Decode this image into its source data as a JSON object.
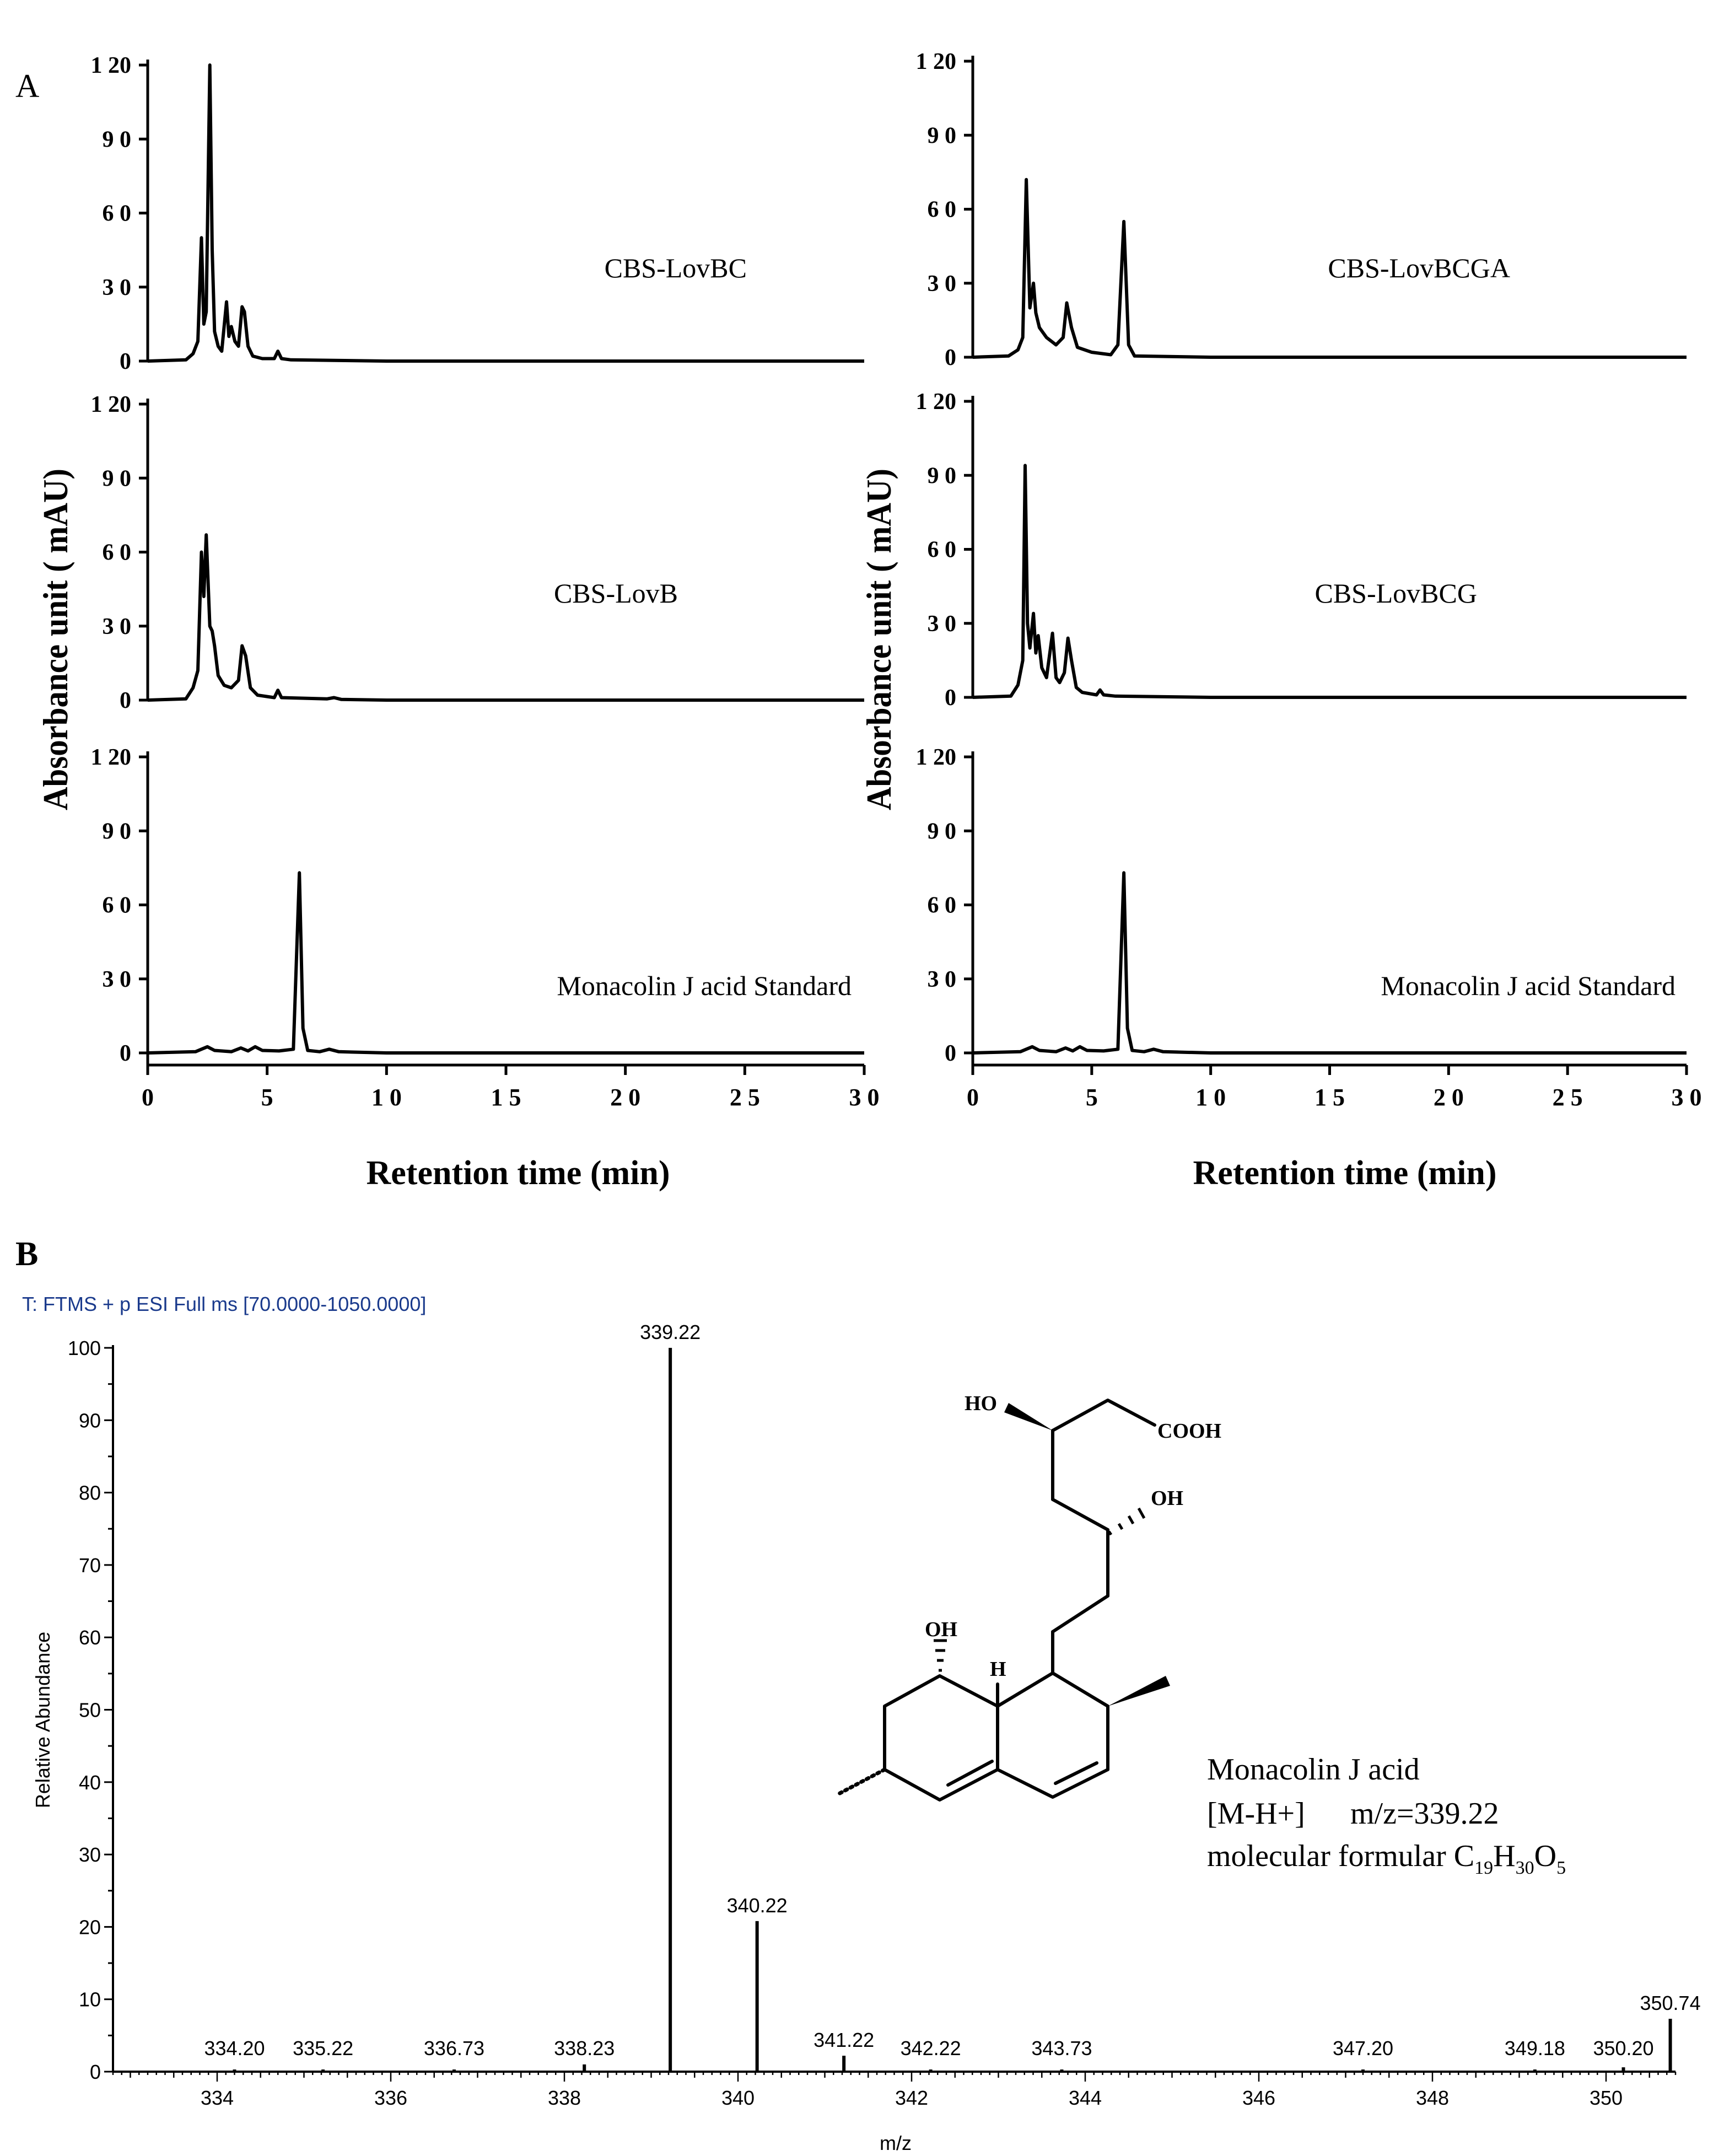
{
  "panel_labels": {
    "a": "A",
    "b": "B"
  },
  "panel_a": {
    "ylabel": "Absorbance unit ( mAU)",
    "xlabel": "Retention time (min)",
    "x_ticks": [
      "0",
      "5",
      "1 0",
      "1 5",
      "2 0",
      "2 5",
      "3 0"
    ],
    "y_ticks": [
      "0",
      "3 0",
      "6 0",
      "9 0",
      "1 20"
    ]
  },
  "panel_b": {
    "header": "T: FTMS + p ESI Full ms [70.0000-1050.0000]",
    "xlabel": "m/z",
    "ylabel": "Relative Abundance",
    "structure_labels": {
      "ho_top": "HO",
      "cooh": "COOH",
      "oh_mid": "OH",
      "oh_ring": "OH",
      "h_ring": "H"
    },
    "compound": {
      "name": "Monacolin J acid",
      "ion": "[M-H+]",
      "mz": "m/z=339.22",
      "formula_prefix": "molecular formular C",
      "sub1": "19",
      "h": "H",
      "sub2": "30",
      "o": "O",
      "sub3": "5"
    }
  },
  "chart_data": [
    {
      "type": "line",
      "panel": "A",
      "position": "left-top",
      "label": "CBS-LovBC",
      "xlabel": "Retention time (min)",
      "ylabel": "Absorbance unit ( mAU)",
      "xlim": [
        0,
        30
      ],
      "ylim": [
        0,
        120
      ],
      "x": [
        0,
        1.6,
        1.9,
        2.1,
        2.25,
        2.35,
        2.45,
        2.6,
        2.7,
        2.8,
        2.95,
        3.1,
        3.3,
        3.4,
        3.5,
        3.65,
        3.8,
        3.95,
        4.05,
        4.2,
        4.4,
        4.8,
        5.3,
        5.45,
        5.6,
        6,
        10,
        30
      ],
      "y": [
        0,
        0.5,
        3,
        8,
        50,
        15,
        20,
        120,
        45,
        12,
        6,
        4,
        24,
        10,
        14,
        8,
        6,
        22,
        20,
        6,
        2,
        1,
        1,
        4,
        1,
        0.5,
        0,
        0
      ]
    },
    {
      "type": "line",
      "panel": "A",
      "position": "left-middle",
      "label": "CBS-LovB",
      "xlabel": "Retention time (min)",
      "ylabel": "Absorbance unit ( mAU)",
      "xlim": [
        0,
        30
      ],
      "ylim": [
        0,
        120
      ],
      "x": [
        0,
        1.6,
        1.9,
        2.1,
        2.25,
        2.35,
        2.45,
        2.6,
        2.7,
        2.8,
        2.95,
        3.2,
        3.5,
        3.8,
        3.95,
        4.1,
        4.3,
        4.6,
        5.3,
        5.45,
        5.6,
        7.5,
        7.8,
        8.1,
        10,
        30
      ],
      "y": [
        0,
        0.5,
        5,
        12,
        60,
        42,
        67,
        30,
        28,
        22,
        10,
        6,
        5,
        8,
        22,
        18,
        5,
        2,
        1,
        4,
        1,
        0.5,
        1,
        0.3,
        0,
        0
      ]
    },
    {
      "type": "line",
      "panel": "A",
      "position": "left-bottom",
      "label": "Monacolin J  acid Standard",
      "xlabel": "Retention time (min)",
      "ylabel": "Absorbance unit ( mAU)",
      "xlim": [
        0,
        30
      ],
      "ylim": [
        0,
        120
      ],
      "x": [
        0,
        2,
        2.5,
        2.8,
        3.5,
        3.9,
        4.2,
        4.5,
        4.8,
        5.5,
        6.1,
        6.35,
        6.5,
        6.7,
        7.2,
        7.6,
        8,
        10,
        30
      ],
      "y": [
        0,
        0.5,
        2.5,
        1,
        0.5,
        2,
        0.8,
        2.5,
        1,
        0.8,
        1.5,
        73,
        10,
        1,
        0.5,
        1.5,
        0.5,
        0,
        0
      ]
    },
    {
      "type": "line",
      "panel": "A",
      "position": "right-top",
      "label": "CBS-LovBCGA",
      "xlabel": "Retention time (min)",
      "ylabel": "Absorbance unit ( mAU)",
      "xlim": [
        0,
        30
      ],
      "ylim": [
        0,
        120
      ],
      "x": [
        0,
        1.5,
        1.9,
        2.1,
        2.25,
        2.4,
        2.55,
        2.65,
        2.8,
        3.1,
        3.5,
        3.8,
        3.95,
        4.15,
        4.4,
        5,
        5.8,
        6.1,
        6.35,
        6.55,
        6.8,
        10,
        30
      ],
      "y": [
        0,
        0.5,
        3,
        8,
        72,
        20,
        30,
        18,
        12,
        8,
        5,
        8,
        22,
        12,
        4,
        2,
        1,
        5,
        55,
        5,
        0.5,
        0,
        0
      ]
    },
    {
      "type": "line",
      "panel": "A",
      "position": "right-middle",
      "label": "CBS-LovBCG",
      "xlabel": "Retention time (min)",
      "ylabel": "Absorbance unit ( mAU)",
      "xlim": [
        0,
        30
      ],
      "ylim": [
        0,
        120
      ],
      "x": [
        0,
        1.6,
        1.9,
        2.1,
        2.2,
        2.3,
        2.4,
        2.55,
        2.65,
        2.75,
        2.9,
        3.1,
        3.35,
        3.5,
        3.65,
        3.85,
        4,
        4.15,
        4.35,
        4.6,
        5.2,
        5.35,
        5.5,
        6,
        10,
        30
      ],
      "y": [
        0,
        0.5,
        5,
        15,
        94,
        30,
        20,
        34,
        18,
        25,
        12,
        8,
        26,
        8,
        6,
        10,
        24,
        15,
        4,
        2,
        1,
        3,
        1,
        0.5,
        0,
        0
      ]
    },
    {
      "type": "line",
      "panel": "A",
      "position": "right-bottom",
      "label": "Monacolin J  acid Standard",
      "xlabel": "Retention time (min)",
      "ylabel": "Absorbance unit ( mAU)",
      "xlim": [
        0,
        30
      ],
      "ylim": [
        0,
        120
      ],
      "x": [
        0,
        2,
        2.5,
        2.8,
        3.5,
        3.9,
        4.2,
        4.5,
        4.8,
        5.5,
        6.1,
        6.35,
        6.5,
        6.7,
        7.2,
        7.6,
        8,
        10,
        30
      ],
      "y": [
        0,
        0.5,
        2.5,
        1,
        0.5,
        2,
        0.8,
        2.5,
        1,
        0.8,
        1.5,
        73,
        10,
        1,
        0.5,
        1.5,
        0.5,
        0,
        0
      ]
    },
    {
      "type": "bar",
      "panel": "B",
      "title": "T: FTMS + p ESI Full ms [70.0000-1050.0000]",
      "xlabel": "m/z",
      "ylabel": "Relative Abundance",
      "xlim": [
        332.8,
        350.8
      ],
      "ylim": [
        0,
        100
      ],
      "x_ticks": [
        334,
        336,
        338,
        340,
        342,
        344,
        346,
        348,
        350
      ],
      "y_ticks": [
        0,
        10,
        20,
        30,
        40,
        50,
        60,
        70,
        80,
        90,
        100
      ],
      "peaks": [
        {
          "mz": 334.2,
          "label": "334.20",
          "intensity": 0.3
        },
        {
          "mz": 335.22,
          "label": "335.22",
          "intensity": 0.3
        },
        {
          "mz": 336.73,
          "label": "336.73",
          "intensity": 0.3
        },
        {
          "mz": 338.23,
          "label": "338.23",
          "intensity": 1.0
        },
        {
          "mz": 339.22,
          "label": "339.22",
          "intensity": 100
        },
        {
          "mz": 340.22,
          "label": "340.22",
          "intensity": 20.8
        },
        {
          "mz": 341.22,
          "label": "341.22",
          "intensity": 2.2
        },
        {
          "mz": 342.22,
          "label": "342.22",
          "intensity": 0.3
        },
        {
          "mz": 343.73,
          "label": "343.73",
          "intensity": 0.3
        },
        {
          "mz": 347.2,
          "label": "347.20",
          "intensity": 0.3
        },
        {
          "mz": 349.18,
          "label": "349.18",
          "intensity": 0.3
        },
        {
          "mz": 350.2,
          "label": "350.20",
          "intensity": 0.6
        },
        {
          "mz": 350.74,
          "label": "350.74",
          "intensity": 7.3
        }
      ]
    }
  ]
}
